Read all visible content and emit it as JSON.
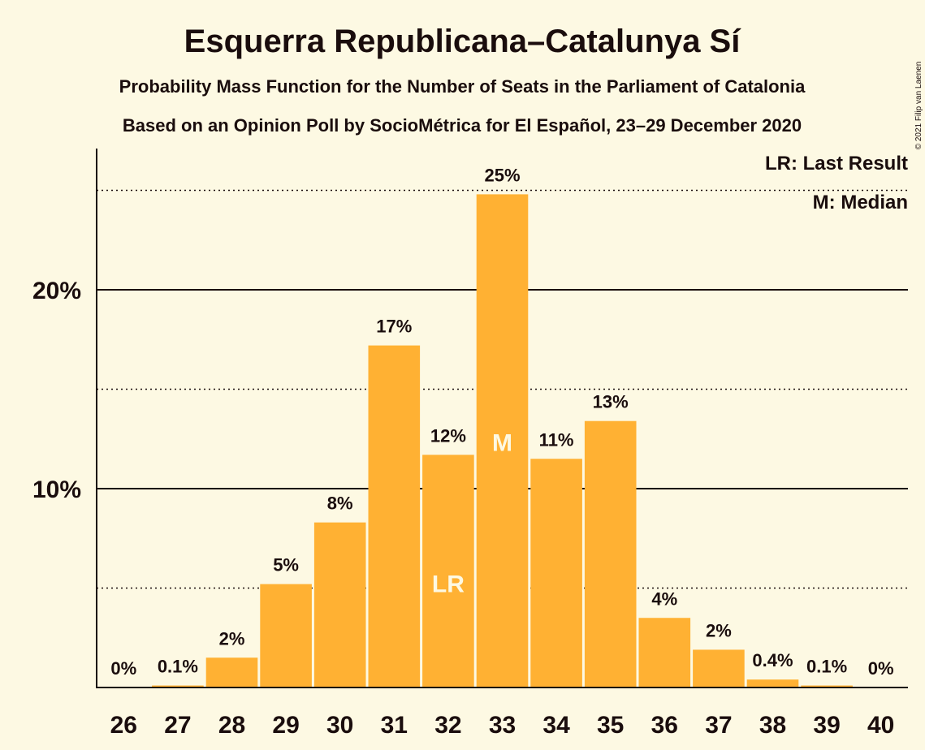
{
  "chart_data": {
    "type": "bar",
    "title": "Esquerra Republicana–Catalunya Sí",
    "subtitle": "Probability Mass Function for the Number of Seats in the Parliament of Catalonia",
    "subtitle2": "Based on an Opinion Poll by SocioMétrica for El Español, 23–29 December 2020",
    "copyright": "© 2021 Filip van Laenen",
    "categories": [
      "26",
      "27",
      "28",
      "29",
      "30",
      "31",
      "32",
      "33",
      "34",
      "35",
      "36",
      "37",
      "38",
      "39",
      "40"
    ],
    "values": [
      0,
      0.1,
      1.5,
      5.2,
      8.3,
      17.2,
      11.7,
      24.8,
      11.5,
      13.4,
      3.5,
      1.9,
      0.4,
      0.1,
      0
    ],
    "value_labels": [
      "0%",
      "0.1%",
      "2%",
      "5%",
      "8%",
      "17%",
      "12%",
      "25%",
      "11%",
      "13%",
      "4%",
      "2%",
      "0.4%",
      "0.1%",
      "0%"
    ],
    "ylim": [
      0,
      27
    ],
    "y_ticks": [
      {
        "value": 10,
        "label": "10%"
      },
      {
        "value": 20,
        "label": "20%"
      }
    ],
    "dotted_lines": [
      5,
      15,
      25
    ],
    "last_result": "32",
    "median": "33",
    "legend": [
      "LR: Last Result",
      "M: Median"
    ],
    "markers": {
      "last_result": "LR",
      "median": "M"
    },
    "colors": {
      "bar": "#ffb133",
      "background": "#fdf9e3",
      "text": "#1a0d0d"
    }
  }
}
